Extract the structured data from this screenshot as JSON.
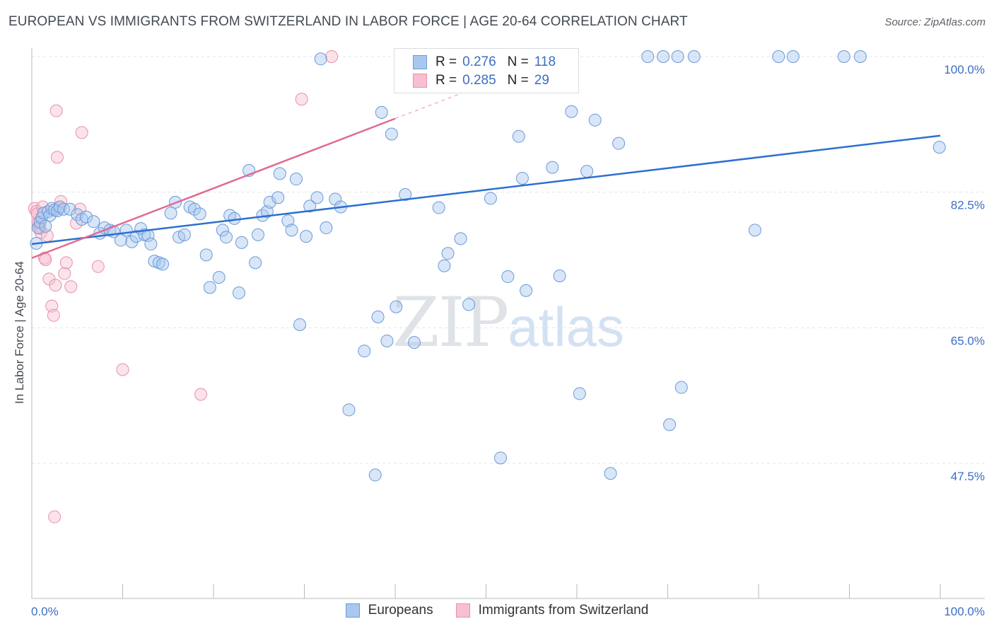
{
  "header": {
    "title": "EUROPEAN VS IMMIGRANTS FROM SWITZERLAND IN LABOR FORCE | AGE 20-64 CORRELATION CHART",
    "source": "Source: ZipAtlas.com"
  },
  "watermark": {
    "zip": "ZIP",
    "atlas": "atlas"
  },
  "legend": {
    "rows": [
      {
        "r_label": "R =",
        "r_value": "0.276",
        "n_label": "N =",
        "n_value": "118",
        "color": "#a9c8f0",
        "stroke": "#6a9ad8"
      },
      {
        "r_label": "R =",
        "r_value": "0.285",
        "n_label": "N =",
        "n_value": "29",
        "color": "#f7c0d0",
        "stroke": "#e890aa"
      }
    ]
  },
  "chart_data": {
    "type": "scatter",
    "title": "EUROPEAN VS IMMIGRANTS FROM SWITZERLAND IN LABOR FORCE | AGE 20-64 CORRELATION CHART",
    "xlabel": "",
    "ylabel": "In Labor Force | Age 20-64",
    "xlim": [
      0,
      100
    ],
    "ylim": [
      33.5,
      101.5
    ],
    "x_tick_labels": [
      "0.0%",
      "100.0%"
    ],
    "y_ticks": [
      47.5,
      65.0,
      82.5,
      100.0
    ],
    "y_tick_labels": [
      "47.5%",
      "65.0%",
      "82.5%",
      "100.0%"
    ],
    "grid": true,
    "legend_position": "bottom",
    "series": [
      {
        "name": "Europeans",
        "color": "#a9c8f0",
        "stroke": "#6a9ad8",
        "trend": {
          "x": [
            0,
            100
          ],
          "y": [
            75.8,
            89.8
          ],
          "color": "#2e6fd0"
        },
        "points": [
          [
            0.5,
            75.9
          ],
          [
            0.7,
            77.9
          ],
          [
            0.9,
            78.6
          ],
          [
            1.1,
            79.2
          ],
          [
            1.3,
            79.8
          ],
          [
            1.5,
            78.1
          ],
          [
            1.8,
            80.0
          ],
          [
            2.0,
            79.5
          ],
          [
            2.2,
            80.4
          ],
          [
            2.5,
            80.2
          ],
          [
            2.8,
            80.1
          ],
          [
            3.1,
            80.6
          ],
          [
            3.5,
            80.3
          ],
          [
            4.2,
            80.3
          ],
          [
            5.0,
            79.6
          ],
          [
            5.5,
            79.0
          ],
          [
            6.0,
            79.3
          ],
          [
            6.8,
            78.7
          ],
          [
            7.5,
            77.2
          ],
          [
            8.0,
            77.9
          ],
          [
            8.6,
            77.6
          ],
          [
            9.0,
            77.4
          ],
          [
            9.8,
            76.3
          ],
          [
            10.4,
            77.6
          ],
          [
            11.0,
            76.1
          ],
          [
            11.5,
            76.8
          ],
          [
            12.0,
            77.8
          ],
          [
            12.4,
            77.0
          ],
          [
            12.8,
            76.9
          ],
          [
            13.1,
            75.8
          ],
          [
            13.5,
            73.6
          ],
          [
            14.0,
            73.4
          ],
          [
            14.4,
            73.2
          ],
          [
            15.3,
            79.8
          ],
          [
            15.8,
            81.2
          ],
          [
            16.2,
            76.7
          ],
          [
            16.8,
            77.0
          ],
          [
            17.4,
            80.6
          ],
          [
            17.9,
            80.3
          ],
          [
            18.5,
            79.7
          ],
          [
            19.2,
            74.4
          ],
          [
            19.6,
            70.2
          ],
          [
            20.6,
            71.5
          ],
          [
            21.0,
            77.6
          ],
          [
            21.4,
            76.7
          ],
          [
            21.8,
            79.5
          ],
          [
            22.3,
            79.1
          ],
          [
            22.8,
            69.5
          ],
          [
            23.1,
            76.0
          ],
          [
            23.9,
            85.3
          ],
          [
            24.6,
            73.4
          ],
          [
            24.9,
            77.0
          ],
          [
            25.4,
            79.5
          ],
          [
            25.9,
            80.0
          ],
          [
            26.2,
            81.2
          ],
          [
            27.1,
            81.8
          ],
          [
            27.3,
            84.9
          ],
          [
            28.2,
            78.8
          ],
          [
            28.6,
            77.6
          ],
          [
            29.1,
            84.2
          ],
          [
            29.5,
            65.4
          ],
          [
            30.2,
            76.8
          ],
          [
            30.6,
            80.7
          ],
          [
            31.4,
            81.8
          ],
          [
            31.8,
            99.7
          ],
          [
            32.4,
            77.9
          ],
          [
            33.4,
            81.6
          ],
          [
            34.0,
            80.6
          ],
          [
            34.9,
            54.4
          ],
          [
            36.6,
            62.0
          ],
          [
            37.8,
            46.0
          ],
          [
            38.1,
            66.4
          ],
          [
            38.5,
            92.8
          ],
          [
            39.1,
            63.3
          ],
          [
            39.6,
            90.0
          ],
          [
            40.1,
            67.7
          ],
          [
            41.1,
            82.2
          ],
          [
            41.2,
            97.8
          ],
          [
            41.7,
            99.5
          ],
          [
            42.1,
            63.1
          ],
          [
            42.7,
            100.0
          ],
          [
            43.4,
            100.0
          ],
          [
            44.3,
            100.0
          ],
          [
            44.8,
            80.5
          ],
          [
            45.4,
            73.0
          ],
          [
            45.8,
            74.6
          ],
          [
            46.3,
            100.0
          ],
          [
            47.2,
            76.5
          ],
          [
            48.3,
            100.0
          ],
          [
            48.1,
            68.0
          ],
          [
            49.3,
            100.0
          ],
          [
            50.2,
            100.0
          ],
          [
            50.5,
            81.7
          ],
          [
            51.6,
            48.2
          ],
          [
            52.4,
            71.6
          ],
          [
            53.6,
            89.7
          ],
          [
            54.0,
            84.3
          ],
          [
            54.4,
            69.8
          ],
          [
            55.1,
            100.0
          ],
          [
            56.5,
            100.0
          ],
          [
            57.3,
            85.7
          ],
          [
            58.1,
            71.7
          ],
          [
            59.4,
            92.9
          ],
          [
            60.3,
            56.5
          ],
          [
            61.1,
            85.2
          ],
          [
            62.0,
            91.8
          ],
          [
            63.7,
            46.2
          ],
          [
            64.6,
            88.8
          ],
          [
            67.8,
            100.0
          ],
          [
            69.5,
            100.0
          ],
          [
            70.2,
            52.5
          ],
          [
            71.1,
            100.0
          ],
          [
            71.5,
            57.3
          ],
          [
            72.9,
            100.0
          ],
          [
            79.6,
            77.6
          ],
          [
            82.2,
            100.0
          ],
          [
            83.8,
            100.0
          ],
          [
            89.4,
            100.0
          ],
          [
            91.2,
            100.0
          ],
          [
            99.9,
            88.3
          ]
        ]
      },
      {
        "name": "Immigrants from Switzerland",
        "color": "#f7c0d0",
        "stroke": "#e890aa",
        "trend": {
          "x": [
            0,
            40
          ],
          "y": [
            74.0,
            92.0
          ],
          "x_dashed": [
            40,
            55
          ],
          "y_dashed": [
            92.0,
            98.7
          ],
          "color": "#e06a92"
        },
        "points": [
          [
            0.3,
            80.4
          ],
          [
            0.5,
            80.0
          ],
          [
            0.6,
            79.7
          ],
          [
            0.7,
            78.6
          ],
          [
            0.8,
            78.1
          ],
          [
            0.9,
            77.8
          ],
          [
            1.0,
            77.3
          ],
          [
            1.2,
            80.6
          ],
          [
            1.4,
            74.0
          ],
          [
            1.5,
            73.8
          ],
          [
            1.7,
            76.9
          ],
          [
            1.9,
            71.3
          ],
          [
            2.2,
            67.8
          ],
          [
            2.4,
            66.6
          ],
          [
            2.5,
            40.6
          ],
          [
            2.6,
            70.5
          ],
          [
            2.7,
            93.0
          ],
          [
            2.8,
            87.0
          ],
          [
            3.0,
            80.4
          ],
          [
            3.2,
            81.3
          ],
          [
            3.6,
            72.0
          ],
          [
            3.8,
            73.4
          ],
          [
            4.3,
            70.3
          ],
          [
            4.9,
            78.5
          ],
          [
            5.3,
            80.3
          ],
          [
            5.5,
            90.2
          ],
          [
            7.3,
            72.9
          ],
          [
            10.0,
            59.6
          ],
          [
            18.6,
            56.4
          ]
        ],
        "outliers": [
          [
            33.0,
            100.0
          ],
          [
            29.7,
            94.5
          ]
        ]
      }
    ]
  }
}
